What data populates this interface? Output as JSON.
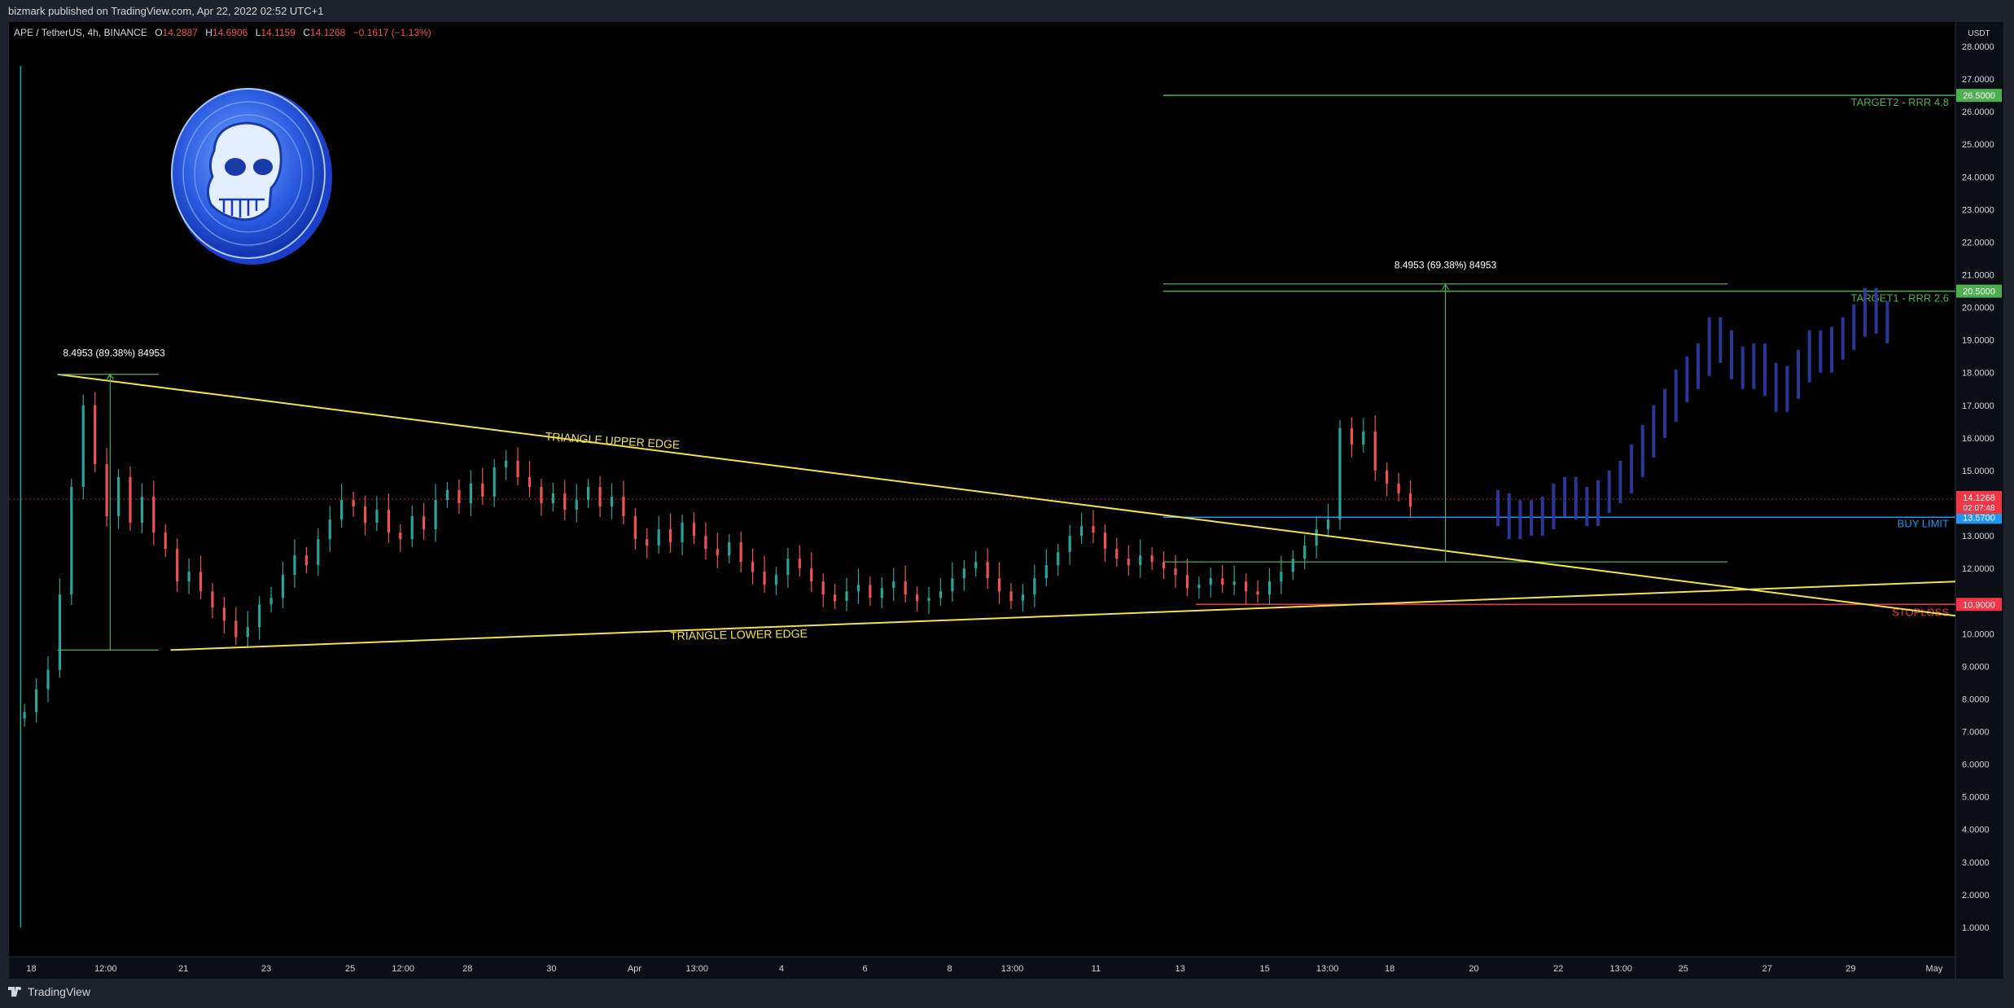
{
  "header": {
    "publisher": "bizmark published on TradingView.com, Apr 22, 2022 02:52 UTC+1"
  },
  "footer": {
    "brand": "TradingView"
  },
  "legend": {
    "symbol": "APE / TetherUS, 4h, BINANCE",
    "o_label": "O",
    "o": "14.2887",
    "h_label": "H",
    "h": "14.6906",
    "l_label": "L",
    "l": "14.1159",
    "c_label": "C",
    "c": "14.1268",
    "change": "−0.1617 (−1.13%)"
  },
  "colors": {
    "background": "#000000",
    "text": "#d1d4dc",
    "up": "#26a69a",
    "down": "#ef5350",
    "triangle": "#f2e14c",
    "target": "#4caf50",
    "buy": "#2196f3",
    "stop": "#f23645",
    "projection": "#2f3ca8"
  },
  "chart_data": {
    "type": "candlestick",
    "price_scale": {
      "currency": "USDT",
      "ticks": [
        "28.0000",
        "27.0000",
        "26.0000",
        "25.0000",
        "24.0000",
        "23.0000",
        "22.0000",
        "21.0000",
        "20.0000",
        "19.0000",
        "18.0000",
        "17.0000",
        "16.0000",
        "15.0000",
        "14.0000",
        "13.0000",
        "12.0000",
        "11.0000",
        "10.0000",
        "9.0000",
        "8.0000",
        "7.0000",
        "6.0000",
        "5.0000",
        "4.0000",
        "3.0000",
        "2.0000",
        "1.0000"
      ],
      "ylim": [
        0.4,
        28.4
      ]
    },
    "time_scale": {
      "ticks": [
        "18",
        "12:00",
        "21",
        "23",
        "25",
        "12:00",
        "28",
        "30",
        "Apr",
        "13:00",
        "4",
        "6",
        "8",
        "13:00",
        "11",
        "13",
        "15",
        "13:00",
        "18",
        "20",
        "22",
        "13:00",
        "25",
        "27",
        "29",
        "May"
      ]
    },
    "levels": [
      {
        "name": "target2",
        "price": 26.5,
        "label": "TARGET2 - RRR 4.8",
        "tag": "26.5000"
      },
      {
        "name": "target1",
        "price": 20.5,
        "label": "TARGET1 - RRR 2.6",
        "tag": "20.5000"
      },
      {
        "name": "current",
        "price": 14.1268,
        "tag": "14.1268",
        "countdown": "02:07:48"
      },
      {
        "name": "buy-limit",
        "price": 13.57,
        "label": "BUY LIMIT",
        "tag": "13.5700"
      },
      {
        "name": "stoploss",
        "price": 10.9,
        "label": "STOPLOSS",
        "tag": "10.9000"
      }
    ],
    "triangle": {
      "upper_label": "TRIANGLE UPPER EDGE",
      "lower_label": "TRIANGLE LOWER EDGE",
      "upper": [
        [
          0.0,
          17.95
        ],
        [
          1.0,
          10.55
        ]
      ],
      "lower": [
        [
          0.055,
          9.5
        ],
        [
          1.0,
          11.6
        ]
      ]
    },
    "measure_left": {
      "label": "8.4953 (89.38%) 84953",
      "from": 9.5,
      "to": 17.95
    },
    "measure_right": {
      "label": "8.4953 (69.38%) 84953",
      "from": 12.2,
      "to": 20.7
    },
    "historical_closes": [
      7.6,
      8.3,
      8.9,
      11.2,
      14.5,
      17.0,
      15.2,
      13.6,
      14.8,
      13.4,
      14.2,
      13.1,
      12.6,
      11.6,
      11.9,
      11.3,
      10.8,
      10.4,
      9.9,
      10.2,
      10.9,
      11.1,
      11.8,
      12.4,
      12.1,
      12.9,
      13.5,
      14.1,
      13.9,
      13.4,
      13.8,
      13.1,
      12.9,
      13.6,
      13.2,
      14.1,
      14.4,
      14.0,
      14.6,
      14.2,
      15.1,
      15.3,
      14.8,
      14.5,
      14.0,
      14.3,
      13.8,
      14.1,
      14.5,
      13.9,
      14.2,
      13.6,
      12.9,
      12.7,
      13.2,
      12.8,
      13.4,
      13.0,
      12.6,
      12.4,
      12.8,
      12.2,
      11.9,
      11.5,
      11.8,
      12.3,
      12.0,
      11.6,
      11.2,
      11.0,
      11.3,
      11.5,
      11.1,
      11.4,
      11.6,
      11.2,
      11.0,
      11.1,
      11.3,
      11.7,
      12.0,
      12.2,
      11.7,
      11.3,
      11.0,
      11.2,
      11.7,
      12.1,
      12.5,
      13.0,
      13.3,
      13.1,
      12.6,
      12.3,
      12.1,
      12.4,
      12.2,
      12.0,
      11.8,
      11.4,
      11.5,
      11.7,
      11.5,
      11.6,
      11.3,
      11.2,
      11.6,
      11.9,
      12.3,
      12.7,
      13.2,
      13.5,
      16.3,
      15.8,
      16.2,
      15.0,
      14.6,
      14.3,
      13.9
    ],
    "projected_closes": [
      13.8,
      13.4,
      13.6,
      13.5,
      13.7,
      14.1,
      14.3,
      14.0,
      13.8,
      14.2,
      14.5,
      14.8,
      15.3,
      15.9,
      16.5,
      17.0,
      17.6,
      18.0,
      18.4,
      19.2,
      18.8,
      18.3,
      18.0,
      18.4,
      17.8,
      17.3,
      17.7,
      18.2,
      18.8,
      18.5,
      18.9,
      19.2,
      19.6,
      20.1,
      19.7,
      19.4
    ]
  }
}
